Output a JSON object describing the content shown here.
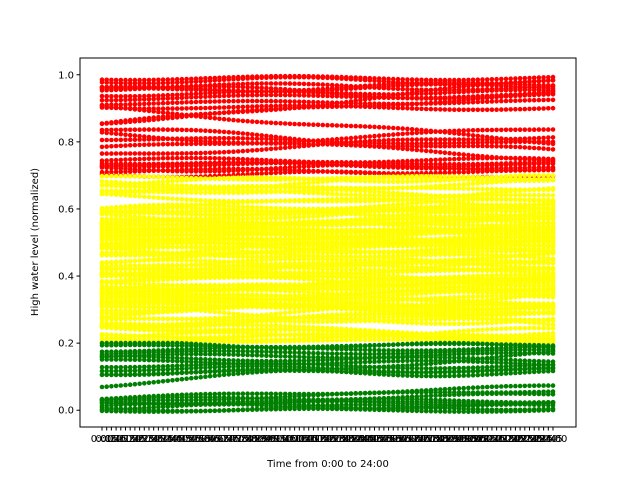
{
  "chart_data": {
    "type": "scatter",
    "title": "",
    "xlabel": "Time from 0:00 to 24:00",
    "ylabel": "High water level (normalized)",
    "ylim": [
      -0.05,
      1.05
    ],
    "yticks": [
      0.0,
      0.2,
      0.4,
      0.6,
      0.8,
      1.0
    ],
    "ytick_labels": [
      "0.0",
      "0.2",
      "0.4",
      "0.6",
      "0.8",
      "1.0"
    ],
    "x_count": 97,
    "xtick_labels": [
      "0:00",
      "0:15",
      "0:30",
      "0:45",
      "1:00",
      "1:15",
      "1:30",
      "1:45",
      "2:00",
      "2:15",
      "2:30",
      "2:45",
      "3:00",
      "3:15",
      "3:30",
      "3:45",
      "4:00",
      "4:15",
      "4:30",
      "4:45",
      "5:00",
      "5:15",
      "5:30",
      "5:45",
      "6:00",
      "6:15",
      "6:30",
      "6:45",
      "7:00",
      "7:15",
      "7:30",
      "7:45",
      "8:00",
      "8:15",
      "8:30",
      "8:45",
      "9:00",
      "9:15",
      "9:30",
      "9:45",
      "10:00",
      "10:15",
      "10:30",
      "10:45",
      "11:00",
      "11:15",
      "11:30",
      "11:45",
      "12:00",
      "12:15",
      "12:30",
      "12:45",
      "13:00",
      "13:15",
      "13:30",
      "13:45",
      "14:00",
      "14:15",
      "14:30",
      "14:45",
      "15:00",
      "15:15",
      "15:30",
      "15:45",
      "16:00",
      "16:15",
      "16:30",
      "16:45",
      "17:00",
      "17:15",
      "17:30",
      "17:45",
      "18:00",
      "18:15",
      "18:30",
      "18:45",
      "19:00",
      "19:15",
      "19:30",
      "19:45",
      "20:00",
      "20:15",
      "20:30",
      "20:45",
      "21:00",
      "21:15",
      "21:30",
      "21:45",
      "22:00",
      "22:15",
      "22:30",
      "22:45",
      "23:00",
      "23:15",
      "23:30",
      "23:45",
      "24:00"
    ],
    "grid": false,
    "legend": "none",
    "series": [
      {
        "color": "#ff0000",
        "level_band": [
          0.7,
          1.0
        ],
        "line_start_end": [
          [
            0.99,
            0.99
          ],
          [
            0.985,
            0.98
          ],
          [
            0.97,
            0.96
          ],
          [
            0.955,
            0.965
          ],
          [
            0.945,
            0.935
          ],
          [
            0.93,
            0.94
          ],
          [
            0.915,
            0.92
          ],
          [
            0.905,
            0.9
          ],
          [
            0.95,
            0.975
          ],
          [
            0.96,
            0.945
          ],
          [
            0.85,
            0.985
          ],
          [
            0.86,
            0.945
          ],
          [
            0.9,
            0.8
          ],
          [
            0.84,
            0.77
          ],
          [
            0.825,
            0.75
          ],
          [
            0.81,
            0.795
          ],
          [
            0.78,
            0.84
          ],
          [
            0.76,
            0.82
          ],
          [
            0.745,
            0.745
          ],
          [
            0.735,
            0.73
          ],
          [
            0.72,
            0.725
          ],
          [
            0.715,
            0.71
          ],
          [
            0.705,
            0.7
          ],
          [
            0.74,
            0.72
          ],
          [
            0.73,
            0.74
          ]
        ]
      },
      {
        "color": "#ffff00",
        "level_band": [
          0.2,
          0.7
        ],
        "line_count": 100
      },
      {
        "color": "#008000",
        "level_band": [
          0.0,
          0.2
        ],
        "line_start_end": [
          [
            0.195,
            0.19
          ],
          [
            0.19,
            0.195
          ],
          [
            0.18,
            0.185
          ],
          [
            0.17,
            0.175
          ],
          [
            0.16,
            0.165
          ],
          [
            0.155,
            0.15
          ],
          [
            0.145,
            0.14
          ],
          [
            0.135,
            0.13
          ],
          [
            0.125,
            0.12
          ],
          [
            0.115,
            0.11
          ],
          [
            0.075,
            0.17
          ],
          [
            0.11,
            0.12
          ],
          [
            0.025,
            0.02
          ],
          [
            0.02,
            0.025
          ],
          [
            0.015,
            0.01
          ],
          [
            0.01,
            0.015
          ],
          [
            0.005,
            0.01
          ],
          [
            0.0,
            0.0
          ],
          [
            0.035,
            0.07
          ],
          [
            0.03,
            0.045
          ],
          [
            0.028,
            0.06
          ],
          [
            0.022,
            0.03
          ]
        ]
      }
    ]
  }
}
